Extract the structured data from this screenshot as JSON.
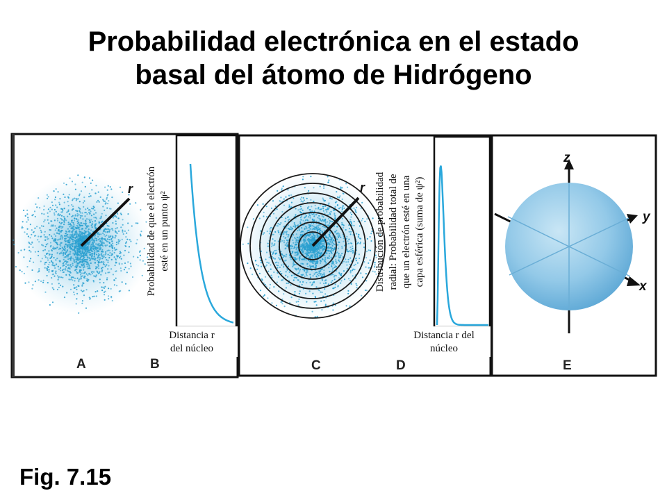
{
  "title_line1": "Probabilidad electrónica en el estado",
  "title_line2": "basal del átomo de Hidrógeno",
  "figure_label": "Fig. 7.15",
  "panels": {
    "A": {
      "letter": "A",
      "r_label": "r"
    },
    "B": {
      "letter": "B",
      "ylabel_line1": "Probabilidad de que el electrón",
      "ylabel_line2": "esté en un punto ψ²",
      "xlabel_line1": "Distancia r",
      "xlabel_line2": "del núcleo"
    },
    "C": {
      "letter": "C",
      "r_label": "r"
    },
    "D": {
      "letter": "D",
      "ylabel_line1": "Distribución de probabilidad",
      "ylabel_line2": "radial: Probabilidad total de",
      "ylabel_line3": "que un electrón esté en una",
      "ylabel_line4": "capa esférica (suma de ψ²)",
      "xlabel_line1": "Distancia r del",
      "xlabel_line2": "núcleo"
    },
    "E": {
      "letter": "E",
      "axis_z": "z",
      "axis_y": "y",
      "axis_x": "x"
    }
  },
  "colors": {
    "dot": "#2aa0d0",
    "curve": "#2aa8dc",
    "sphere": "#8cc6e6",
    "frame": "#111111"
  }
}
